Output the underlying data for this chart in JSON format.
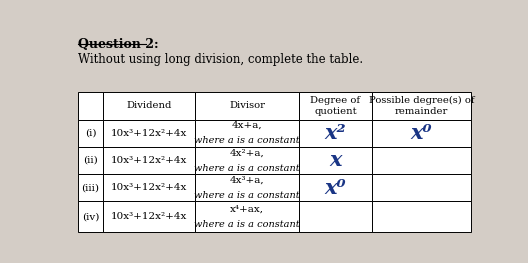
{
  "title": "Question 2:",
  "subtitle": "Without using long division, complete the table.",
  "bg_color": "#d4cdc6",
  "header_row": [
    "Dividend",
    "Divisor",
    "Degree of\nquotient",
    "Possible degree(s) of\nremainder"
  ],
  "rows": [
    {
      "label": "(i)",
      "dividend": "10x³+12x²+4x",
      "divisor_line1": "4x+a,",
      "divisor_line2": "where a is a constant",
      "quotient": "x²",
      "remainder": "x⁰"
    },
    {
      "label": "(ii)",
      "dividend": "10x³+12x²+4x",
      "divisor_line1": "4x²+a,",
      "divisor_line2": "where a is a constant",
      "quotient": "x",
      "remainder": ""
    },
    {
      "label": "(iii)",
      "dividend": "10x³+12x²+4x",
      "divisor_line1": "4x³+a,",
      "divisor_line2": "where a is a constant",
      "quotient": "x⁰",
      "remainder": ""
    },
    {
      "label": "(iv)",
      "dividend": "10x³+12x²+4x",
      "divisor_line1": "x⁴+ax,",
      "divisor_line2": "where a is a constant",
      "quotient": "",
      "remainder": ""
    }
  ]
}
